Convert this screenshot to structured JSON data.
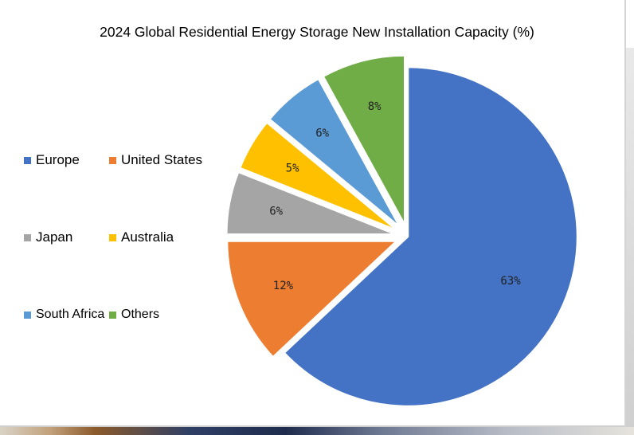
{
  "chart_data": {
    "type": "pie",
    "title": "2024 Global Residential Energy Storage New Installation Capacity (%)",
    "categories": [
      "Europe",
      "United States",
      "Japan",
      "Australia",
      "South Africa",
      "Others"
    ],
    "values": [
      63,
      12,
      6,
      5,
      6,
      8
    ],
    "labels": [
      "63%",
      "12%",
      "6%",
      "5%",
      "6%",
      "8%"
    ],
    "colors": [
      "#4472C4",
      "#ED7D31",
      "#A5A5A5",
      "#FFC000",
      "#5B9BD5",
      "#70AD47"
    ],
    "legend_position": "left"
  }
}
